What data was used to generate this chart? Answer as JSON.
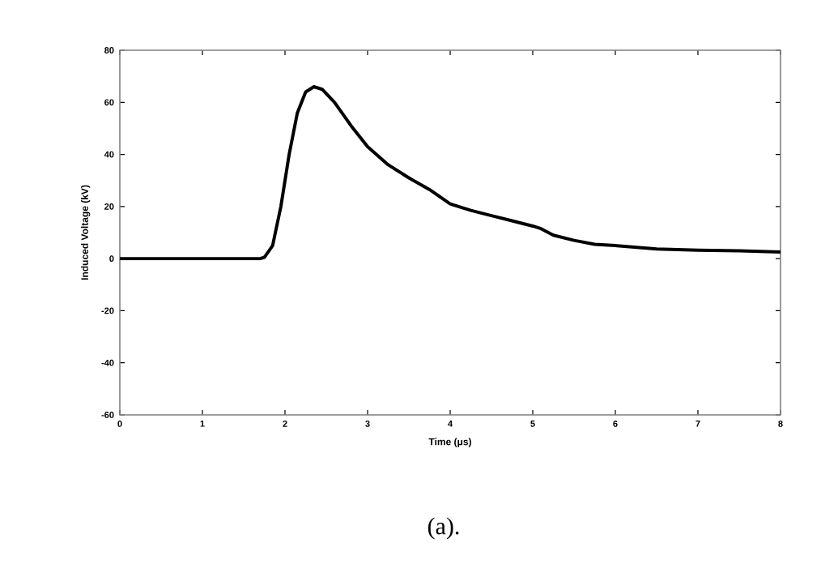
{
  "chart_data": {
    "type": "line",
    "xlabel": "Time (μs)",
    "ylabel": "Induced Voltage (kV)",
    "annotations": [
      "(a)."
    ],
    "x": [
      0,
      1.7,
      1.75,
      1.85,
      1.95,
      2.05,
      2.15,
      2.25,
      2.35,
      2.45,
      2.6,
      2.8,
      3,
      3.25,
      3.5,
      3.75,
      4,
      4.25,
      4.5,
      4.75,
      5,
      5.1,
      5.25,
      5.5,
      5.75,
      6,
      6.5,
      7,
      7.5,
      8
    ],
    "series": [
      {
        "color": "#000000",
        "values": [
          0,
          0,
          0.5,
          5,
          20,
          40,
          56,
          64,
          66,
          65,
          60,
          51,
          43,
          36,
          31,
          26.5,
          21,
          18.5,
          16.5,
          14.5,
          12.5,
          11.5,
          9,
          7,
          5.5,
          5,
          3.7,
          3.2,
          3,
          2.5
        ]
      }
    ],
    "xlim": [
      0,
      8
    ],
    "ylim": [
      -60,
      80
    ],
    "xticks": [
      0,
      1,
      2,
      3,
      4,
      5,
      6,
      7,
      8
    ],
    "yticks": [
      -60,
      -40,
      -20,
      0,
      20,
      40,
      60,
      80
    ],
    "grid": false,
    "marker": "none",
    "line_style": "solid"
  }
}
